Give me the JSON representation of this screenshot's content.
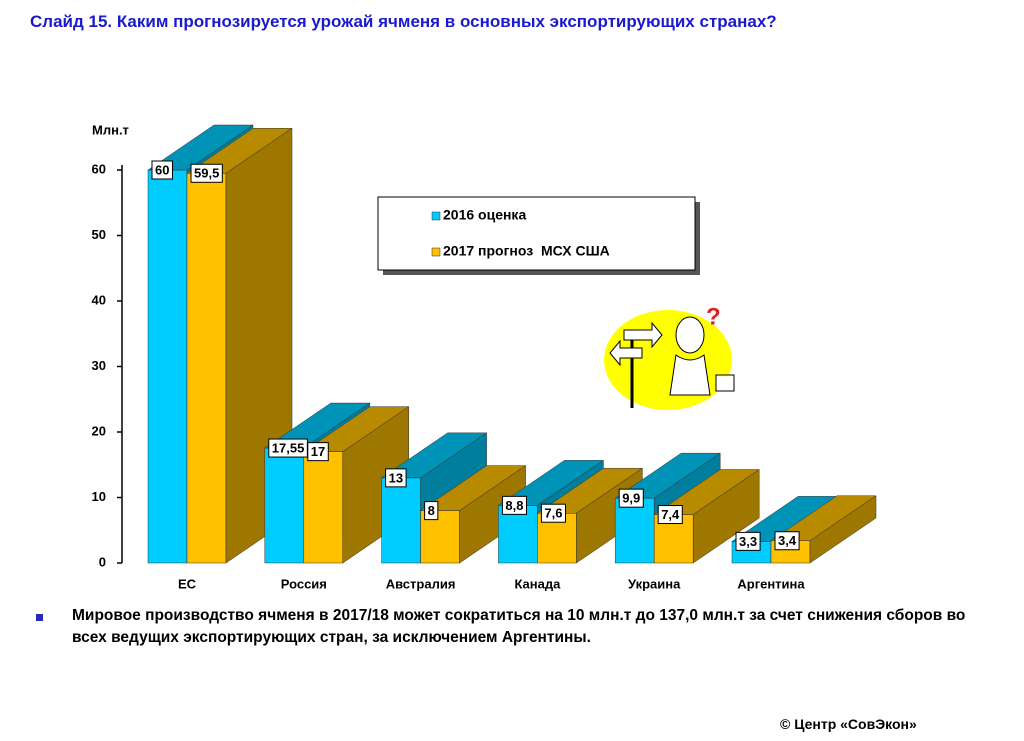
{
  "chart_data": {
    "type": "bar3d",
    "title": "Слайд 15.  Каким прогнозируется урожай ячменя в основных экспортирующих странах?",
    "y_axis_label": "Млн.т",
    "categories": [
      "ЕС",
      "Россия",
      "Австралия",
      "Канада",
      "Украина",
      "Аргентина"
    ],
    "series": [
      {
        "name": "2016 оценка",
        "color": "#00ccff",
        "values": [
          60,
          17.55,
          13,
          8.8,
          9.9,
          3.3
        ],
        "value_labels": [
          "60",
          "17,55",
          "13",
          "8,8",
          "9,9",
          "3,3"
        ]
      },
      {
        "name": "2017 прогноз  МСХ США",
        "color": "#ffc000",
        "values": [
          59.5,
          17,
          8,
          7.6,
          7.4,
          3.4
        ],
        "value_labels": [
          "59,5",
          "17",
          "8",
          "7,6",
          "7,4",
          "3,4"
        ]
      }
    ],
    "ylim": [
      0,
      60
    ],
    "yticks": [
      0,
      10,
      20,
      30,
      40,
      50,
      60
    ]
  },
  "note": "Мировое производство ячменя в 2017/18 может сократиться на 10 млн.т до 137,0 млн.т за счет снижения сборов во всех ведущих экспортирующих стран, за исключением Аргентины.",
  "footer": "© Центр «СовЭкон»"
}
